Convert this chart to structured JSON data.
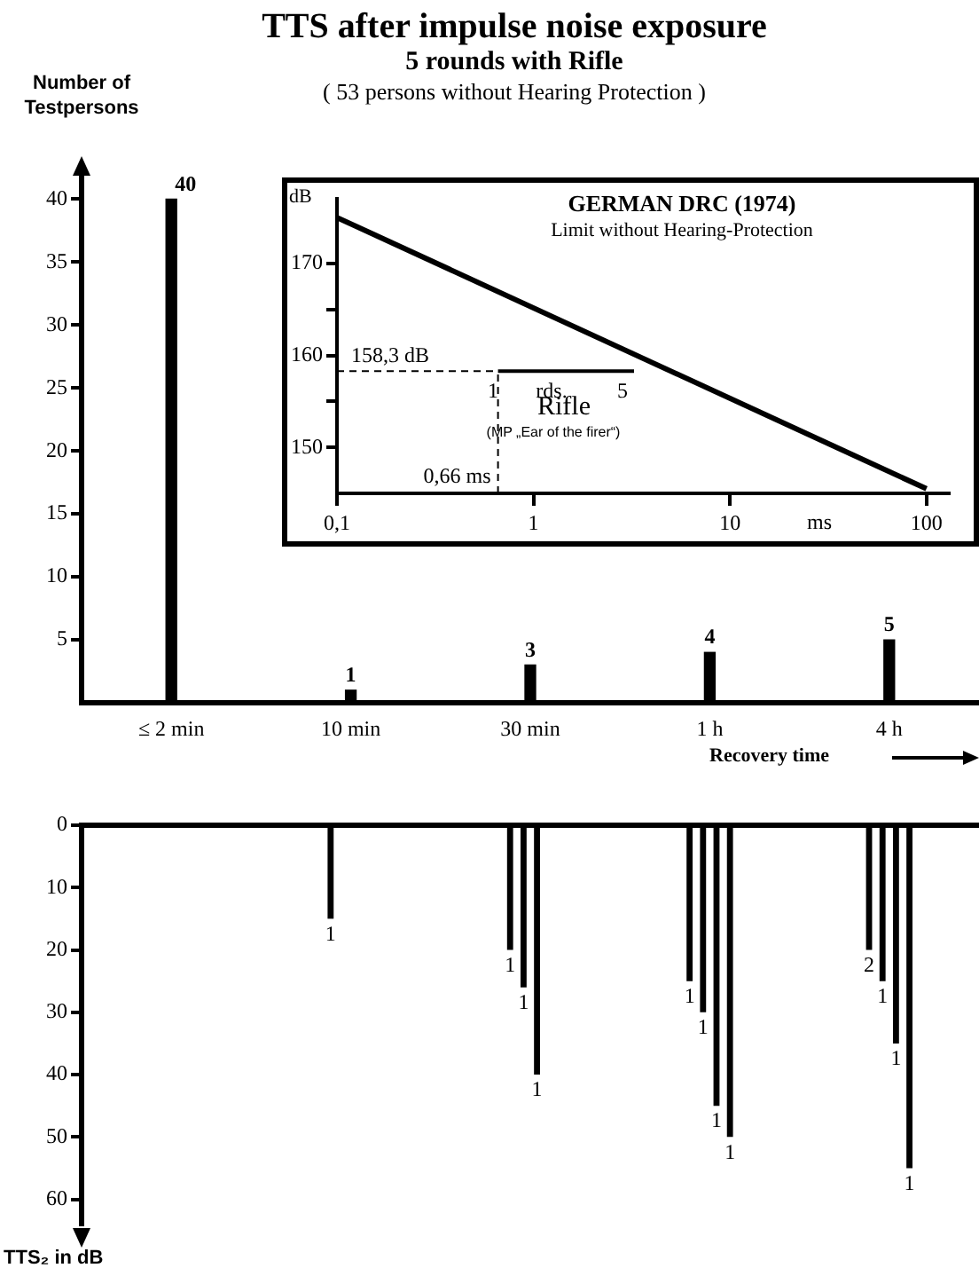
{
  "chart_data": [
    {
      "type": "bar",
      "title": "TTS after impulse noise exposure",
      "subtitle": "5 rounds with Rifle",
      "annotations": [
        "( 53 persons without Hearing Protection )"
      ],
      "ylabel": "Number of Testpersons",
      "xlabel": "Recovery time",
      "categories": [
        "≤ 2 min",
        "10 min",
        "30 min",
        "1 h",
        "4 h"
      ],
      "values": [
        40,
        1,
        3,
        4,
        5
      ],
      "color": "#000000",
      "ylim": [
        0,
        42
      ],
      "yticks": [
        5,
        10,
        15,
        20,
        25,
        30,
        35,
        40
      ],
      "data_labels": true,
      "grid": false
    },
    {
      "type": "bar",
      "ylabel": "TTS₂ in dB",
      "categories": [
        null,
        null,
        null,
        null,
        null
      ],
      "ylim": [
        64,
        0
      ],
      "yticks": [
        0,
        10,
        20,
        30,
        40,
        50,
        60
      ],
      "grid": false,
      "series": [
        {
          "color": "#000000",
          "values": [
            null,
            15,
            20,
            25,
            20
          ]
        },
        {
          "color": "#000000",
          "values": [
            null,
            null,
            26,
            30,
            25
          ]
        },
        {
          "color": "#000000",
          "values": [
            null,
            null,
            40,
            45,
            35
          ]
        },
        {
          "color": "#000000",
          "values": [
            null,
            null,
            null,
            50,
            55
          ]
        }
      ],
      "annotations": [
        "1",
        "1",
        "1",
        "1",
        "1",
        "1",
        "1",
        "1",
        "2",
        "1",
        "1",
        "1"
      ]
    },
    {
      "type": "line",
      "title": "GERMAN DRC (1974)",
      "subtitle": "Limit without Hearing-Protection",
      "xlabel": "ms",
      "ylabel": "dB",
      "log": "x",
      "xlim": [
        0.1,
        130
      ],
      "xticks": [
        {
          "value": 0.1,
          "label": "0,1"
        },
        1,
        10,
        100
      ],
      "ylim": [
        145,
        177
      ],
      "yticks": [
        150,
        {
          "value": 155,
          "label": null
        },
        160,
        {
          "value": 165,
          "label": null
        },
        170
      ],
      "grid": false,
      "series": [
        {
          "color": "#000000",
          "x": [
            0.1,
            100
          ],
          "values": [
            175,
            145.5
          ]
        },
        {
          "color": "#000000",
          "x": [
            0.66,
            3.25
          ],
          "values": [
            158.3,
            158.3
          ]
        }
      ],
      "ref_lines": [
        {
          "axis": "y",
          "value": 158.3,
          "label": "158,3 dB",
          "line_style": "dashed"
        },
        {
          "axis": "x",
          "value": 0.66,
          "label": "0,66 ms",
          "line_style": "dashed"
        }
      ],
      "annotations": [
        "1",
        "rds.",
        "5",
        "Rifle",
        "(MP „Ear of the firer“)"
      ]
    }
  ]
}
